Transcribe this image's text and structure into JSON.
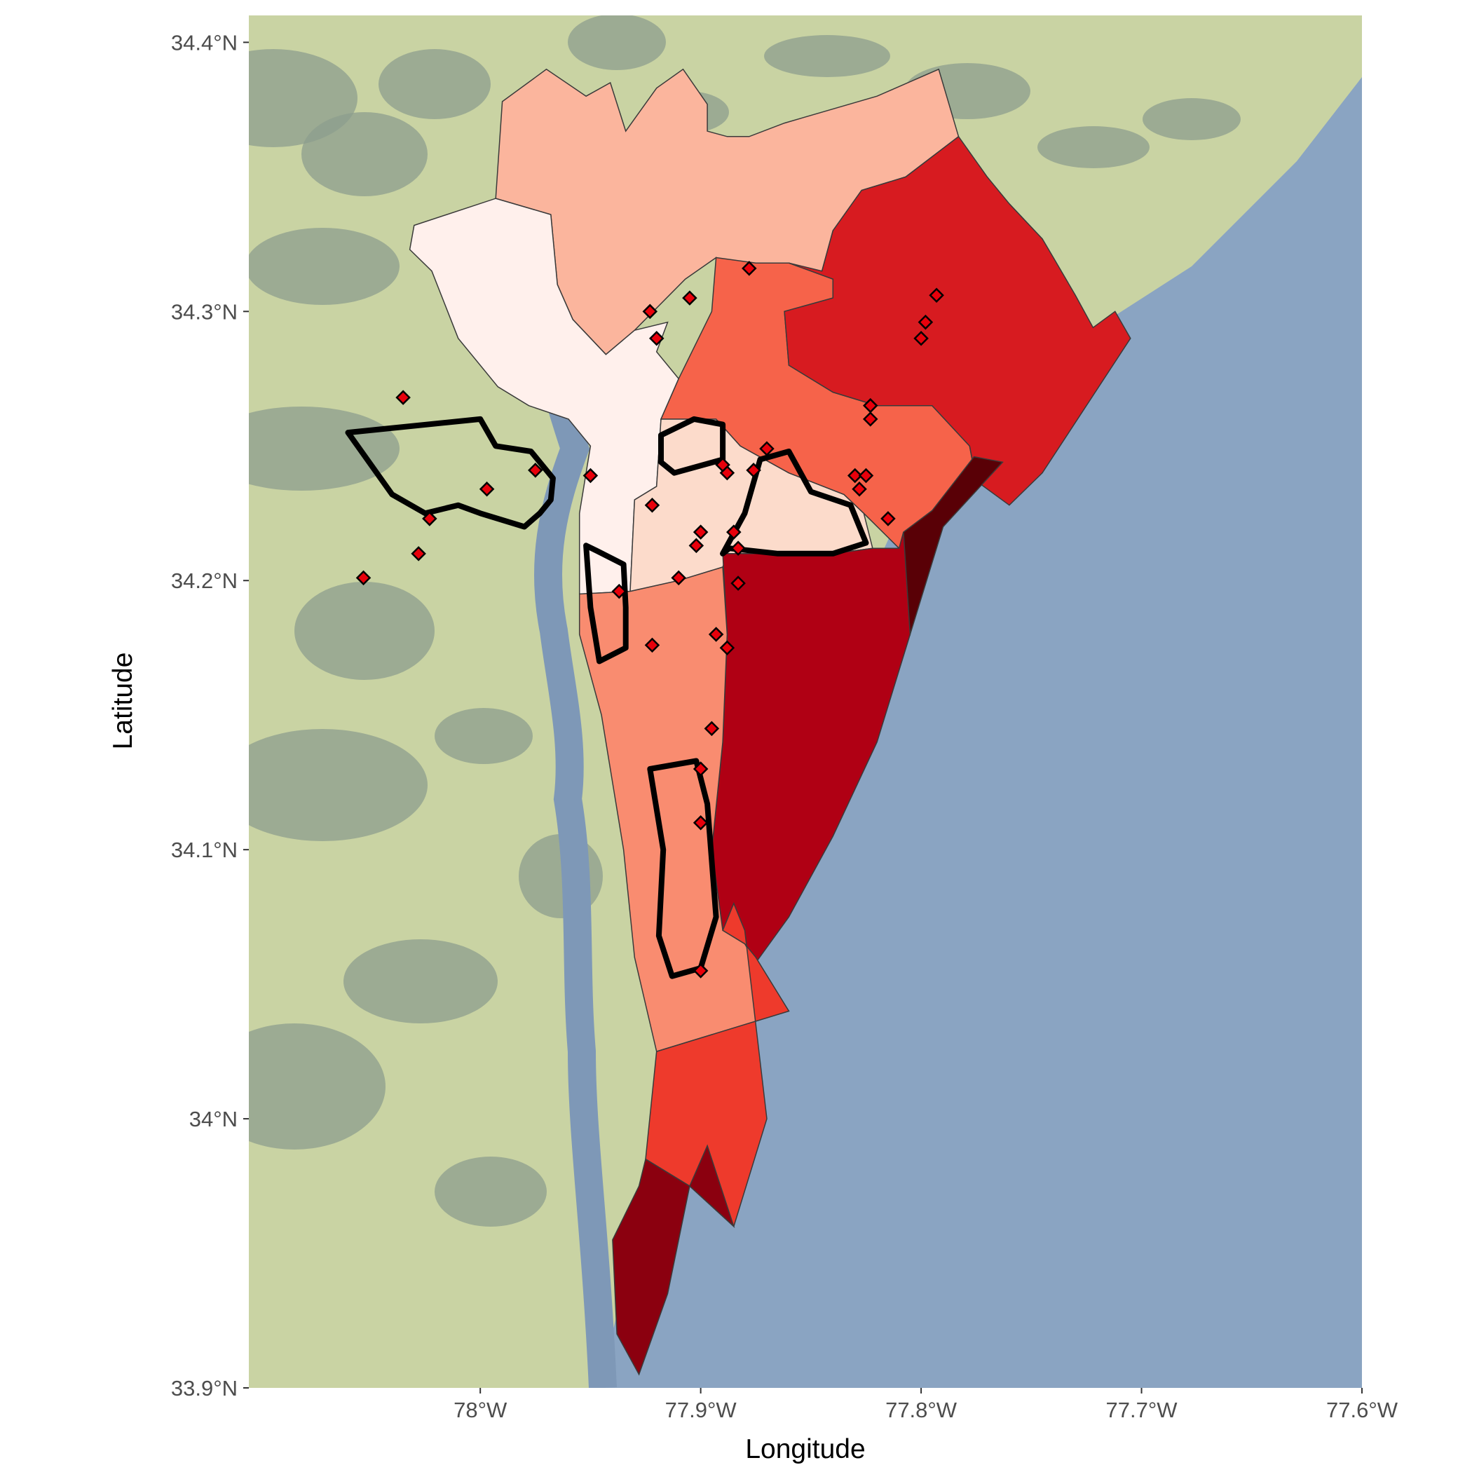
{
  "chart_data": {
    "type": "map",
    "xlabel": "Longitude",
    "ylabel": "Latitude",
    "xlim": [
      -78.105,
      -77.6
    ],
    "ylim": [
      33.9,
      34.41
    ],
    "x_ticks": [
      {
        "value": -78.0,
        "label": "78°W"
      },
      {
        "value": -77.9,
        "label": "77.9°W"
      },
      {
        "value": -77.8,
        "label": "77.8°W"
      },
      {
        "value": -77.7,
        "label": "77.7°W"
      },
      {
        "value": -77.6,
        "label": "77.6°W"
      }
    ],
    "y_ticks": [
      {
        "value": 33.9,
        "label": "33.9°N"
      },
      {
        "value": 34.0,
        "label": "34°N"
      },
      {
        "value": 34.1,
        "label": "34.1°N"
      },
      {
        "value": 34.2,
        "label": "34.2°N"
      },
      {
        "value": 34.3,
        "label": "34.3°N"
      },
      {
        "value": 34.4,
        "label": "34.4°N"
      }
    ],
    "colors": {
      "ocean": "#8aa4c2",
      "land": "#c9d3a3",
      "marsh": "#8c9e8e",
      "point_fill": "#e8000b",
      "outline": "#000000"
    },
    "regions": [
      {
        "fill": "#fbb59d",
        "coords": [
          [
            -77.99,
            34.378
          ],
          [
            -77.97,
            34.39
          ],
          [
            -77.952,
            34.38
          ],
          [
            -77.941,
            34.385
          ],
          [
            -77.934,
            34.367
          ],
          [
            -77.92,
            34.383
          ],
          [
            -77.908,
            34.39
          ],
          [
            -77.897,
            34.377
          ],
          [
            -77.897,
            34.367
          ],
          [
            -77.888,
            34.365
          ],
          [
            -77.878,
            34.365
          ],
          [
            -77.862,
            34.37
          ],
          [
            -77.82,
            34.38
          ],
          [
            -77.792,
            34.39
          ],
          [
            -77.783,
            34.365
          ],
          [
            -77.807,
            34.35
          ],
          [
            -77.827,
            34.345
          ],
          [
            -77.84,
            34.33
          ],
          [
            -77.845,
            34.315
          ],
          [
            -77.89,
            34.308
          ],
          [
            -77.893,
            34.32
          ],
          [
            -77.907,
            34.312
          ],
          [
            -77.93,
            34.293
          ],
          [
            -77.943,
            34.284
          ],
          [
            -77.958,
            34.297
          ],
          [
            -77.965,
            34.31
          ],
          [
            -77.968,
            34.336
          ],
          [
            -77.993,
            34.342
          ]
        ]
      },
      {
        "fill": "#fff0ec",
        "coords": [
          [
            -78.03,
            34.332
          ],
          [
            -77.993,
            34.342
          ],
          [
            -77.968,
            34.336
          ],
          [
            -77.965,
            34.31
          ],
          [
            -77.958,
            34.297
          ],
          [
            -77.943,
            34.284
          ],
          [
            -77.93,
            34.293
          ],
          [
            -77.915,
            34.296
          ],
          [
            -77.92,
            34.285
          ],
          [
            -77.91,
            34.275
          ],
          [
            -77.918,
            34.26
          ],
          [
            -77.92,
            34.235
          ],
          [
            -77.93,
            34.23
          ],
          [
            -77.932,
            34.196
          ],
          [
            -77.955,
            34.195
          ],
          [
            -77.955,
            34.225
          ],
          [
            -77.95,
            34.25
          ],
          [
            -77.96,
            34.26
          ],
          [
            -77.978,
            34.265
          ],
          [
            -77.992,
            34.272
          ],
          [
            -78.01,
            34.29
          ],
          [
            -78.022,
            34.315
          ],
          [
            -78.032,
            34.323
          ]
        ]
      },
      {
        "fill": "#fcdbcb",
        "coords": [
          [
            -77.918,
            34.26
          ],
          [
            -77.893,
            34.26
          ],
          [
            -77.882,
            34.25
          ],
          [
            -77.86,
            34.24
          ],
          [
            -77.835,
            34.232
          ],
          [
            -77.826,
            34.225
          ],
          [
            -77.822,
            34.212
          ],
          [
            -77.84,
            34.21
          ],
          [
            -77.86,
            34.21
          ],
          [
            -77.888,
            34.21
          ],
          [
            -77.89,
            34.205
          ],
          [
            -77.91,
            34.2
          ],
          [
            -77.932,
            34.196
          ],
          [
            -77.93,
            34.23
          ],
          [
            -77.92,
            34.235
          ]
        ]
      },
      {
        "fill": "#f6634a",
        "coords": [
          [
            -77.893,
            34.32
          ],
          [
            -77.875,
            34.318
          ],
          [
            -77.86,
            34.318
          ],
          [
            -77.84,
            34.312
          ],
          [
            -77.84,
            34.305
          ],
          [
            -77.862,
            34.3
          ],
          [
            -77.86,
            34.28
          ],
          [
            -77.84,
            34.27
          ],
          [
            -77.82,
            34.265
          ],
          [
            -77.795,
            34.265
          ],
          [
            -77.778,
            34.25
          ],
          [
            -77.775,
            34.237
          ],
          [
            -77.79,
            34.22
          ],
          [
            -77.81,
            34.212
          ],
          [
            -77.826,
            34.225
          ],
          [
            -77.835,
            34.232
          ],
          [
            -77.86,
            34.24
          ],
          [
            -77.882,
            34.25
          ],
          [
            -77.893,
            34.26
          ],
          [
            -77.918,
            34.26
          ],
          [
            -77.91,
            34.275
          ],
          [
            -77.895,
            34.3
          ]
        ]
      },
      {
        "fill": "#d71b20",
        "coords": [
          [
            -77.845,
            34.315
          ],
          [
            -77.84,
            34.33
          ],
          [
            -77.827,
            34.345
          ],
          [
            -77.807,
            34.35
          ],
          [
            -77.783,
            34.365
          ],
          [
            -77.77,
            34.35
          ],
          [
            -77.76,
            34.34
          ],
          [
            -77.745,
            34.327
          ],
          [
            -77.74,
            34.32
          ],
          [
            -77.73,
            34.306
          ],
          [
            -77.722,
            34.294
          ],
          [
            -77.712,
            34.3
          ],
          [
            -77.705,
            34.29
          ],
          [
            -77.745,
            34.24
          ],
          [
            -77.76,
            34.228
          ],
          [
            -77.775,
            34.237
          ],
          [
            -77.778,
            34.25
          ],
          [
            -77.795,
            34.265
          ],
          [
            -77.82,
            34.265
          ],
          [
            -77.84,
            34.27
          ],
          [
            -77.86,
            34.28
          ],
          [
            -77.862,
            34.3
          ],
          [
            -77.84,
            34.305
          ],
          [
            -77.84,
            34.312
          ],
          [
            -77.86,
            34.318
          ]
        ]
      },
      {
        "fill": "#590006",
        "coords": [
          [
            -77.776,
            34.246
          ],
          [
            -77.763,
            34.244
          ],
          [
            -77.79,
            34.22
          ],
          [
            -77.805,
            34.18
          ],
          [
            -77.81,
            34.19
          ],
          [
            -77.808,
            34.218
          ],
          [
            -77.795,
            34.226
          ]
        ]
      },
      {
        "fill": "#b00014",
        "coords": [
          [
            -77.81,
            34.212
          ],
          [
            -77.808,
            34.218
          ],
          [
            -77.805,
            34.18
          ],
          [
            -77.82,
            34.14
          ],
          [
            -77.84,
            34.105
          ],
          [
            -77.86,
            34.075
          ],
          [
            -77.875,
            34.058
          ],
          [
            -77.88,
            34.065
          ],
          [
            -77.89,
            34.07
          ],
          [
            -77.895,
            34.1
          ],
          [
            -77.89,
            34.14
          ],
          [
            -77.888,
            34.18
          ],
          [
            -77.89,
            34.21
          ],
          [
            -77.86,
            34.21
          ],
          [
            -77.84,
            34.21
          ],
          [
            -77.822,
            34.212
          ]
        ]
      },
      {
        "fill": "#f98c70",
        "coords": [
          [
            -77.932,
            34.196
          ],
          [
            -77.91,
            34.2
          ],
          [
            -77.89,
            34.205
          ],
          [
            -77.888,
            34.18
          ],
          [
            -77.89,
            34.14
          ],
          [
            -77.895,
            34.1
          ],
          [
            -77.89,
            34.07
          ],
          [
            -77.88,
            34.065
          ],
          [
            -77.875,
            34.058
          ],
          [
            -77.86,
            34.04
          ],
          [
            -77.92,
            34.025
          ],
          [
            -77.93,
            34.06
          ],
          [
            -77.935,
            34.1
          ],
          [
            -77.945,
            34.15
          ],
          [
            -77.955,
            34.18
          ],
          [
            -77.955,
            34.195
          ]
        ]
      },
      {
        "fill": "#ee3a2c",
        "coords": [
          [
            -77.92,
            34.025
          ],
          [
            -77.86,
            34.04
          ],
          [
            -77.875,
            34.06
          ],
          [
            -77.88,
            34.065
          ],
          [
            -77.89,
            34.07
          ],
          [
            -77.885,
            34.08
          ],
          [
            -77.88,
            34.07
          ],
          [
            -77.87,
            34.0
          ],
          [
            -77.885,
            33.96
          ],
          [
            -77.905,
            33.975
          ],
          [
            -77.925,
            33.985
          ]
        ]
      },
      {
        "fill": "#8b000f",
        "coords": [
          [
            -77.925,
            33.985
          ],
          [
            -77.905,
            33.975
          ],
          [
            -77.885,
            33.96
          ],
          [
            -77.897,
            33.99
          ],
          [
            -77.905,
            33.975
          ],
          [
            -77.915,
            33.935
          ],
          [
            -77.928,
            33.905
          ],
          [
            -77.938,
            33.92
          ],
          [
            -77.94,
            33.955
          ],
          [
            -77.928,
            33.975
          ]
        ]
      }
    ],
    "outlines": [
      [
        [
          -78.06,
          34.255
        ],
        [
          -78.0,
          34.26
        ],
        [
          -77.993,
          34.25
        ],
        [
          -77.977,
          34.248
        ],
        [
          -77.967,
          34.238
        ],
        [
          -77.968,
          34.23
        ],
        [
          -77.973,
          34.225
        ],
        [
          -77.98,
          34.22
        ],
        [
          -78.0,
          34.225
        ],
        [
          -78.01,
          34.228
        ],
        [
          -78.025,
          34.225
        ],
        [
          -78.04,
          34.232
        ],
        [
          -78.06,
          34.255
        ]
      ],
      [
        [
          -77.918,
          34.254
        ],
        [
          -77.903,
          34.26
        ],
        [
          -77.89,
          34.258
        ],
        [
          -77.89,
          34.245
        ],
        [
          -77.912,
          34.24
        ],
        [
          -77.918,
          34.244
        ]
      ],
      [
        [
          -77.873,
          34.245
        ],
        [
          -77.86,
          34.248
        ],
        [
          -77.85,
          34.233
        ],
        [
          -77.832,
          34.228
        ],
        [
          -77.825,
          34.214
        ],
        [
          -77.84,
          34.21
        ],
        [
          -77.865,
          34.21
        ],
        [
          -77.887,
          34.212
        ],
        [
          -77.89,
          34.21
        ],
        [
          -77.88,
          34.225
        ]
      ],
      [
        [
          -77.952,
          34.213
        ],
        [
          -77.947,
          34.211
        ],
        [
          -77.935,
          34.206
        ],
        [
          -77.934,
          34.19
        ],
        [
          -77.934,
          34.175
        ],
        [
          -77.946,
          34.17
        ],
        [
          -77.95,
          34.19
        ]
      ],
      [
        [
          -77.923,
          34.13
        ],
        [
          -77.902,
          34.133
        ],
        [
          -77.897,
          34.117
        ],
        [
          -77.893,
          34.075
        ],
        [
          -77.9,
          34.056
        ],
        [
          -77.913,
          34.053
        ],
        [
          -77.919,
          34.068
        ],
        [
          -77.917,
          34.1
        ]
      ]
    ],
    "points": [
      [
        -78.035,
        34.268
      ],
      [
        -77.923,
        34.3
      ],
      [
        -77.92,
        34.29
      ],
      [
        -77.905,
        34.305
      ],
      [
        -77.878,
        34.316
      ],
      [
        -77.793,
        34.306
      ],
      [
        -77.798,
        34.296
      ],
      [
        -77.8,
        34.29
      ],
      [
        -77.823,
        34.265
      ],
      [
        -77.823,
        34.26
      ],
      [
        -77.87,
        34.249
      ],
      [
        -77.83,
        34.239
      ],
      [
        -77.825,
        34.239
      ],
      [
        -77.828,
        34.234
      ],
      [
        -77.815,
        34.223
      ],
      [
        -77.876,
        34.241
      ],
      [
        -77.888,
        34.24
      ],
      [
        -77.89,
        34.243
      ],
      [
        -77.975,
        34.241
      ],
      [
        -77.95,
        34.239
      ],
      [
        -77.997,
        34.234
      ],
      [
        -78.023,
        34.223
      ],
      [
        -78.028,
        34.21
      ],
      [
        -78.053,
        34.201
      ],
      [
        -77.922,
        34.228
      ],
      [
        -77.9,
        34.218
      ],
      [
        -77.902,
        34.213
      ],
      [
        -77.885,
        34.218
      ],
      [
        -77.883,
        34.212
      ],
      [
        -77.91,
        34.201
      ],
      [
        -77.883,
        34.199
      ],
      [
        -77.937,
        34.196
      ],
      [
        -77.893,
        34.18
      ],
      [
        -77.888,
        34.175
      ],
      [
        -77.922,
        34.176
      ],
      [
        -77.895,
        34.145
      ],
      [
        -77.9,
        34.13
      ],
      [
        -77.9,
        34.11
      ],
      [
        -77.9,
        34.055
      ]
    ]
  }
}
